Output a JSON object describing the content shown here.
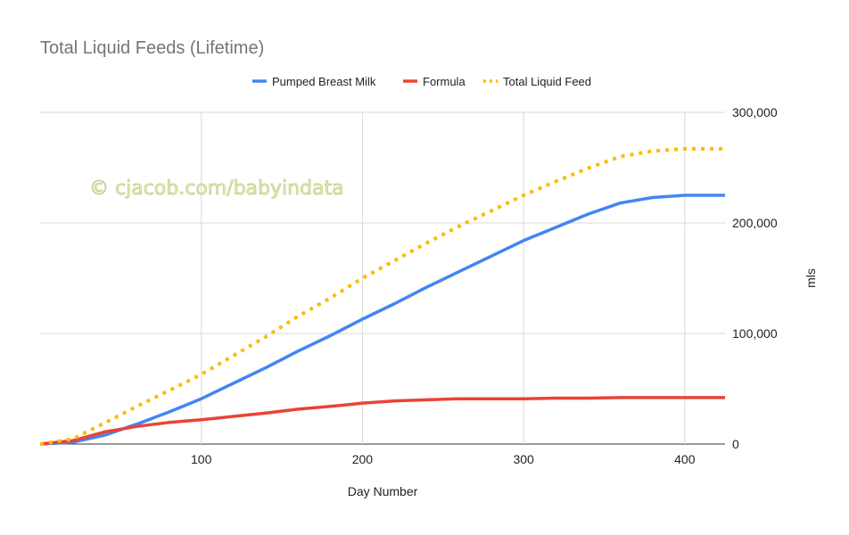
{
  "chart_data": {
    "type": "line",
    "title": "Total Liquid Feeds (Lifetime)",
    "xlabel": "Day Number",
    "ylabel": "mls",
    "xlim": [
      0,
      425
    ],
    "ylim": [
      0,
      300000
    ],
    "x_ticks": [
      "100",
      "200",
      "300",
      "400"
    ],
    "x_tick_values": [
      100,
      200,
      300,
      400
    ],
    "y_ticks": [
      "0",
      "100,000",
      "200,000",
      "300,000"
    ],
    "y_tick_values": [
      0,
      100000,
      200000,
      300000
    ],
    "y_axis_side": "right",
    "grid": true,
    "legend_position": "top",
    "watermark": "© cjacob.com/babyindata",
    "x": [
      0,
      20,
      40,
      60,
      80,
      100,
      120,
      140,
      160,
      180,
      200,
      220,
      240,
      260,
      280,
      300,
      320,
      340,
      360,
      380,
      400,
      425
    ],
    "series": [
      {
        "name": "Pumped Breast Milk",
        "color": "#4285f4",
        "style": "solid",
        "values": [
          0,
          1500,
          8000,
          18000,
          29000,
          41000,
          55000,
          69000,
          84000,
          98000,
          113000,
          127000,
          142000,
          156000,
          170000,
          184000,
          196000,
          208000,
          218000,
          223000,
          225000,
          225000
        ]
      },
      {
        "name": "Formula",
        "color": "#ea4335",
        "style": "solid",
        "values": [
          0,
          3000,
          11000,
          16000,
          19500,
          22000,
          25000,
          28000,
          31500,
          34000,
          37000,
          39000,
          40000,
          41000,
          41000,
          41000,
          41500,
          41500,
          42000,
          42000,
          42000,
          42000
        ]
      },
      {
        "name": "Total Liquid Feed",
        "color": "#fbbc04",
        "style": "dotted",
        "values": [
          0,
          4500,
          19000,
          34000,
          48500,
          63000,
          80000,
          97000,
          115500,
          132000,
          150000,
          166000,
          182000,
          197000,
          211000,
          225000,
          237500,
          249500,
          260000,
          265000,
          267000,
          267000
        ]
      }
    ]
  }
}
